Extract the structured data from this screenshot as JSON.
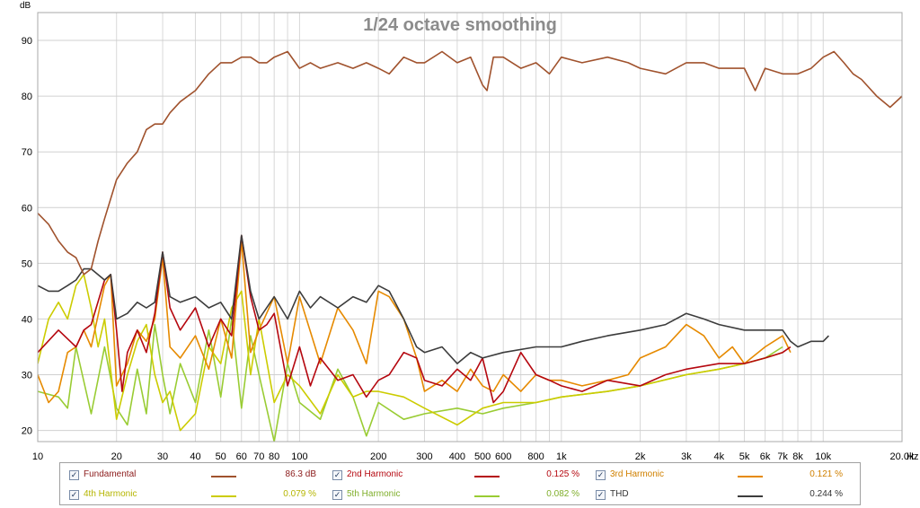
{
  "chart_data": {
    "type": "line",
    "title": "1/24 octave smoothing",
    "ylabel": "dB",
    "xunit": "Hz",
    "xscale": "log",
    "xlim": [
      10,
      20000
    ],
    "ylim": [
      18,
      95
    ],
    "grid": true,
    "y_ticks": [
      "20",
      "30",
      "40",
      "50",
      "60",
      "70",
      "80",
      "90"
    ],
    "x_ticks": [
      {
        "v": 10,
        "label": "10"
      },
      {
        "v": 20,
        "label": "20"
      },
      {
        "v": 30,
        "label": "30"
      },
      {
        "v": 40,
        "label": "40"
      },
      {
        "v": 50,
        "label": "50"
      },
      {
        "v": 60,
        "label": "60"
      },
      {
        "v": 70,
        "label": "70"
      },
      {
        "v": 80,
        "label": "80"
      },
      {
        "v": 100,
        "label": "100"
      },
      {
        "v": 200,
        "label": "200"
      },
      {
        "v": 300,
        "label": "300"
      },
      {
        "v": 400,
        "label": "400"
      },
      {
        "v": 500,
        "label": "500"
      },
      {
        "v": 600,
        "label": "600"
      },
      {
        "v": 800,
        "label": "800"
      },
      {
        "v": 1000,
        "label": "1k"
      },
      {
        "v": 2000,
        "label": "2k"
      },
      {
        "v": 3000,
        "label": "3k"
      },
      {
        "v": 4000,
        "label": "4k"
      },
      {
        "v": 5000,
        "label": "5k"
      },
      {
        "v": 6000,
        "label": "6k"
      },
      {
        "v": 7000,
        "label": "7k"
      },
      {
        "v": 8000,
        "label": "8k"
      },
      {
        "v": 10000,
        "label": "10k"
      },
      {
        "v": 20000,
        "label": "20.0k"
      }
    ],
    "series": [
      {
        "name": "Fundamental",
        "color": "#a0522d",
        "x": [
          10,
          11,
          12,
          13,
          14,
          15,
          16,
          17,
          18,
          20,
          22,
          24,
          26,
          28,
          30,
          32,
          35,
          40,
          45,
          50,
          55,
          60,
          65,
          70,
          75,
          80,
          90,
          100,
          110,
          120,
          140,
          160,
          180,
          200,
          220,
          250,
          280,
          300,
          350,
          400,
          450,
          500,
          520,
          550,
          600,
          700,
          800,
          900,
          1000,
          1200,
          1500,
          1800,
          2000,
          2500,
          3000,
          3500,
          4000,
          5000,
          5500,
          6000,
          7000,
          8000,
          9000,
          10000,
          11000,
          12000,
          13000,
          14000,
          16000,
          18000,
          20000
        ],
        "y": [
          59,
          57,
          54,
          52,
          51,
          48,
          49,
          54,
          58,
          65,
          68,
          70,
          74,
          75,
          75,
          77,
          79,
          81,
          84,
          86,
          86,
          87,
          87,
          86,
          86,
          87,
          88,
          85,
          86,
          85,
          86,
          85,
          86,
          85,
          84,
          87,
          86,
          86,
          88,
          86,
          87,
          82,
          81,
          87,
          87,
          85,
          86,
          84,
          87,
          86,
          87,
          86,
          85,
          84,
          86,
          86,
          85,
          85,
          81,
          85,
          84,
          84,
          85,
          87,
          88,
          86,
          84,
          83,
          80,
          78,
          80
        ]
      },
      {
        "name": "2nd Harmonic",
        "color": "#b5070f",
        "x": [
          10,
          12,
          14,
          15,
          16,
          18,
          19,
          20,
          21,
          22,
          24,
          26,
          28,
          30,
          32,
          35,
          40,
          45,
          50,
          55,
          60,
          65,
          70,
          75,
          80,
          90,
          100,
          110,
          120,
          140,
          160,
          180,
          200,
          220,
          250,
          280,
          300,
          350,
          400,
          450,
          500,
          550,
          600,
          700,
          800,
          900,
          1000,
          1200,
          1500,
          2000,
          2500,
          3000,
          4000,
          5000,
          6000,
          7000,
          7500
        ],
        "y": [
          34,
          38,
          35,
          38,
          39,
          47,
          48,
          38,
          27,
          34,
          38,
          34,
          41,
          52,
          42,
          38,
          42,
          35,
          40,
          37,
          55,
          44,
          38,
          39,
          41,
          28,
          35,
          28,
          33,
          29,
          30,
          26,
          29,
          30,
          34,
          33,
          29,
          28,
          31,
          29,
          33,
          25,
          27,
          34,
          30,
          29,
          28,
          27,
          29,
          28,
          30,
          31,
          32,
          32,
          33,
          34,
          35
        ]
      },
      {
        "name": "3rd Harmonic",
        "color": "#e68a00",
        "x": [
          10,
          11,
          12,
          13,
          14,
          15,
          16,
          18,
          19,
          20,
          22,
          24,
          26,
          28,
          30,
          32,
          35,
          40,
          45,
          50,
          55,
          60,
          65,
          70,
          80,
          90,
          100,
          120,
          140,
          160,
          180,
          200,
          220,
          250,
          280,
          300,
          350,
          400,
          450,
          500,
          550,
          600,
          700,
          800,
          900,
          1000,
          1200,
          1500,
          1800,
          2000,
          2500,
          3000,
          3500,
          4000,
          4500,
          5000,
          6000,
          7000,
          7500
        ],
        "y": [
          30,
          25,
          27,
          34,
          35,
          38,
          35,
          46,
          48,
          28,
          32,
          38,
          36,
          40,
          51,
          35,
          33,
          37,
          31,
          40,
          33,
          54,
          34,
          38,
          44,
          32,
          44,
          32,
          42,
          38,
          32,
          45,
          44,
          40,
          33,
          27,
          29,
          27,
          31,
          28,
          27,
          30,
          27,
          30,
          29,
          29,
          28,
          29,
          30,
          33,
          35,
          39,
          37,
          33,
          35,
          32,
          35,
          37,
          34
        ]
      },
      {
        "name": "4th Harmonic",
        "color": "#cccc00",
        "x": [
          10,
          11,
          12,
          13,
          14,
          15,
          16,
          17,
          18,
          20,
          22,
          24,
          26,
          28,
          30,
          32,
          35,
          40,
          45,
          50,
          55,
          60,
          65,
          70,
          80,
          90,
          100,
          120,
          140,
          160,
          180,
          200,
          250,
          300,
          400,
          500,
          600,
          800,
          1000,
          1500,
          2000,
          3000,
          4000,
          5000,
          6000,
          7000
        ],
        "y": [
          32,
          40,
          43,
          40,
          46,
          48,
          42,
          35,
          40,
          22,
          30,
          36,
          39,
          30,
          25,
          27,
          20,
          23,
          35,
          32,
          42,
          45,
          30,
          40,
          25,
          30,
          28,
          23,
          30,
          26,
          27,
          27,
          26,
          24,
          21,
          24,
          25,
          25,
          26,
          27,
          28,
          30,
          31,
          32,
          33,
          34
        ]
      },
      {
        "name": "5th Harmonic",
        "color": "#99cc33",
        "x": [
          10,
          12,
          13,
          14,
          16,
          18,
          20,
          22,
          24,
          26,
          28,
          30,
          32,
          35,
          40,
          45,
          50,
          55,
          60,
          65,
          70,
          80,
          90,
          100,
          120,
          140,
          160,
          180,
          200,
          250,
          300,
          400,
          500,
          600,
          800,
          1000,
          1500,
          2000,
          3000,
          4000,
          5000,
          6000,
          7000
        ],
        "y": [
          27,
          26,
          24,
          35,
          23,
          35,
          24,
          21,
          31,
          23,
          39,
          30,
          23,
          32,
          25,
          38,
          26,
          40,
          24,
          37,
          30,
          18,
          32,
          25,
          22,
          31,
          26,
          19,
          25,
          22,
          23,
          24,
          23,
          24,
          25,
          26,
          27,
          28,
          30,
          31,
          32,
          33,
          35
        ]
      },
      {
        "name": "THD",
        "color": "#3c3c3c",
        "x": [
          10,
          11,
          12,
          13,
          14,
          15,
          16,
          18,
          19,
          20,
          22,
          24,
          26,
          28,
          30,
          32,
          35,
          40,
          45,
          50,
          55,
          60,
          65,
          70,
          80,
          90,
          100,
          110,
          120,
          140,
          160,
          180,
          200,
          220,
          250,
          280,
          300,
          350,
          400,
          450,
          500,
          600,
          800,
          1000,
          1200,
          1500,
          2000,
          2500,
          3000,
          3500,
          4000,
          5000,
          6000,
          7000,
          7500,
          8000,
          9000,
          10000,
          10500
        ],
        "y": [
          46,
          45,
          45,
          46,
          47,
          49,
          49,
          47,
          48,
          40,
          41,
          43,
          42,
          43,
          52,
          44,
          43,
          44,
          42,
          43,
          40,
          55,
          45,
          40,
          44,
          40,
          45,
          42,
          44,
          42,
          44,
          43,
          46,
          45,
          40,
          35,
          34,
          35,
          32,
          34,
          33,
          34,
          35,
          35,
          36,
          37,
          38,
          39,
          41,
          40,
          39,
          38,
          38,
          38,
          36,
          35,
          36,
          36,
          37
        ]
      }
    ]
  },
  "legend": [
    {
      "name": "Fundamental",
      "value": "86.3 dB",
      "text_color": "#8b1a1a",
      "value_color": "#8b1a1a",
      "checked": "✓"
    },
    {
      "name": "2nd Harmonic",
      "value": "0.125 %",
      "text_color": "#b5070f",
      "value_color": "#b5070f",
      "checked": "✓"
    },
    {
      "name": "3rd Harmonic",
      "value": "0.121 %",
      "text_color": "#d08000",
      "value_color": "#d08000",
      "checked": "✓"
    },
    {
      "name": "4th Harmonic",
      "value": "0.079 %",
      "text_color": "#b5b500",
      "value_color": "#b5b500",
      "checked": "✓"
    },
    {
      "name": "5th Harmonic",
      "value": "0.082 %",
      "text_color": "#7fae2a",
      "value_color": "#7fae2a",
      "checked": "✓"
    },
    {
      "name": "THD",
      "value": "0.244 %",
      "text_color": "#333333",
      "value_color": "#333333",
      "checked": "✓"
    }
  ]
}
